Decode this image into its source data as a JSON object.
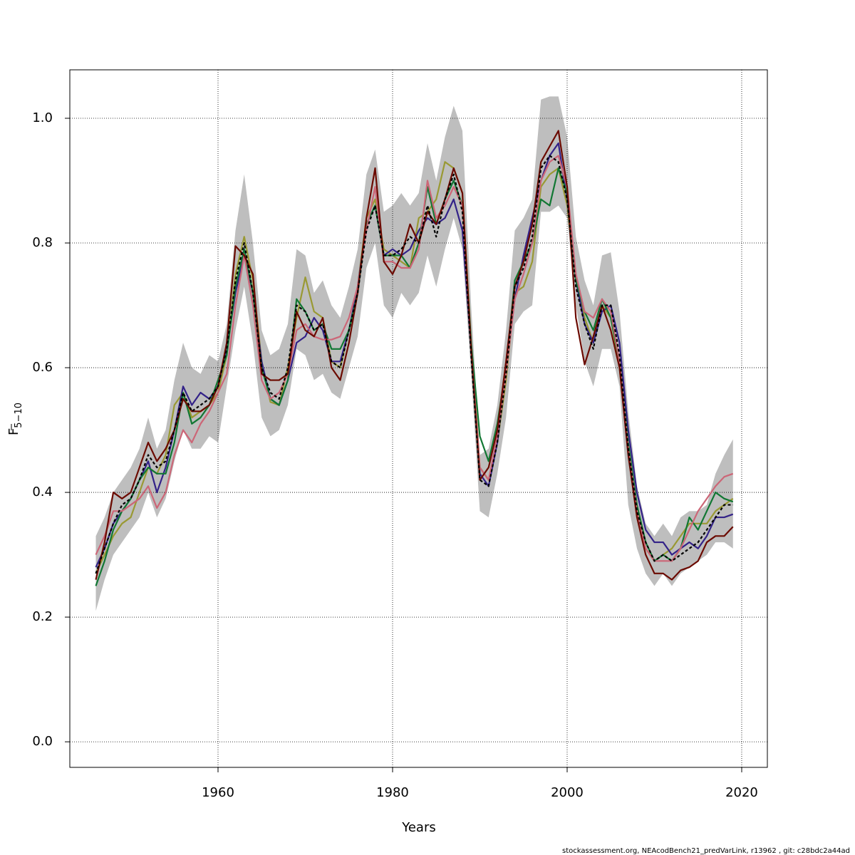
{
  "chart_data": {
    "type": "line",
    "xlabel": "Years",
    "ylabel": {
      "main": "F",
      "sub": "5−10"
    },
    "footer": "stockassessment.org, NEAcodBench21_predVarLink, r13962 , git: c28bdc2a44ad",
    "xlim": [
      1943.02,
      2022.94
    ],
    "ylim": [
      -0.041,
      1.0777
    ],
    "xticks": [
      1960,
      1980,
      2000,
      2020
    ],
    "yticks": [
      {
        "value": 0,
        "label": "0.0"
      },
      0.2,
      0.4,
      0.6,
      0.8,
      {
        "value": 1,
        "label": "1.0"
      }
    ],
    "grid": true,
    "x": [
      1946,
      1947,
      1948,
      1949,
      1950,
      1951,
      1952,
      1953,
      1954,
      1955,
      1956,
      1957,
      1958,
      1959,
      1960,
      1961,
      1962,
      1963,
      1964,
      1965,
      1966,
      1967,
      1968,
      1969,
      1970,
      1971,
      1972,
      1973,
      1974,
      1975,
      1976,
      1977,
      1978,
      1979,
      1980,
      1981,
      1982,
      1983,
      1984,
      1985,
      1986,
      1987,
      1988,
      1989,
      1990,
      1991,
      1992,
      1993,
      1994,
      1995,
      1996,
      1997,
      1998,
      1999,
      2000,
      2001,
      2002,
      2003,
      2004,
      2005,
      2006,
      2007,
      2008,
      2009,
      2010,
      2011,
      2012,
      2013,
      2014,
      2015,
      2016,
      2017,
      2018,
      2019
    ],
    "band": {
      "color": "#bebebe",
      "upper": [
        0.33,
        0.36,
        0.4,
        0.42,
        0.44,
        0.47,
        0.52,
        0.47,
        0.5,
        0.58,
        0.64,
        0.6,
        0.59,
        0.62,
        0.61,
        0.67,
        0.82,
        0.91,
        0.8,
        0.66,
        0.62,
        0.63,
        0.67,
        0.79,
        0.78,
        0.72,
        0.74,
        0.7,
        0.68,
        0.73,
        0.79,
        0.91,
        0.95,
        0.85,
        0.86,
        0.88,
        0.86,
        0.88,
        0.96,
        0.9,
        0.97,
        1.02,
        0.98,
        0.7,
        0.46,
        0.47,
        0.54,
        0.66,
        0.82,
        0.84,
        0.87,
        1.03,
        1.035,
        1.035,
        0.97,
        0.81,
        0.74,
        0.7,
        0.78,
        0.785,
        0.69,
        0.53,
        0.41,
        0.35,
        0.33,
        0.35,
        0.33,
        0.36,
        0.37,
        0.37,
        0.38,
        0.43,
        0.46,
        0.485
      ],
      "lower": [
        0.21,
        0.26,
        0.3,
        0.32,
        0.34,
        0.36,
        0.4,
        0.36,
        0.39,
        0.45,
        0.5,
        0.47,
        0.47,
        0.49,
        0.48,
        0.57,
        0.66,
        0.73,
        0.64,
        0.52,
        0.49,
        0.5,
        0.54,
        0.63,
        0.62,
        0.58,
        0.59,
        0.56,
        0.55,
        0.6,
        0.65,
        0.76,
        0.8,
        0.7,
        0.68,
        0.72,
        0.7,
        0.72,
        0.78,
        0.73,
        0.79,
        0.84,
        0.79,
        0.59,
        0.37,
        0.36,
        0.43,
        0.52,
        0.67,
        0.69,
        0.7,
        0.85,
        0.85,
        0.86,
        0.84,
        0.7,
        0.61,
        0.57,
        0.63,
        0.63,
        0.57,
        0.38,
        0.31,
        0.27,
        0.25,
        0.27,
        0.25,
        0.27,
        0.28,
        0.29,
        0.3,
        0.32,
        0.32,
        0.31
      ]
    },
    "series": [
      {
        "color": "#999933",
        "values": [
          0.27,
          0.3,
          0.33,
          0.35,
          0.36,
          0.4,
          0.44,
          0.43,
          0.46,
          0.54,
          0.56,
          0.52,
          0.53,
          0.54,
          0.56,
          0.62,
          0.75,
          0.81,
          0.74,
          0.61,
          0.545,
          0.54,
          0.6,
          0.68,
          0.745,
          0.69,
          0.68,
          0.61,
          0.6,
          0.66,
          0.73,
          0.84,
          0.87,
          0.79,
          0.78,
          0.77,
          0.76,
          0.84,
          0.85,
          0.87,
          0.93,
          0.92,
          0.88,
          0.64,
          0.44,
          0.42,
          0.48,
          0.58,
          0.72,
          0.73,
          0.77,
          0.89,
          0.91,
          0.92,
          0.86,
          0.74,
          0.68,
          0.64,
          0.7,
          0.68,
          0.6,
          0.47,
          0.37,
          0.31,
          0.29,
          0.3,
          0.31,
          0.33,
          0.35,
          0.35,
          0.35,
          0.37,
          0.38,
          0.39
        ]
      },
      {
        "color": "#332288",
        "values": [
          0.28,
          0.31,
          0.35,
          0.37,
          0.39,
          0.42,
          0.45,
          0.4,
          0.44,
          0.5,
          0.57,
          0.54,
          0.56,
          0.55,
          0.57,
          0.63,
          0.72,
          0.78,
          0.72,
          0.61,
          0.55,
          0.54,
          0.58,
          0.64,
          0.65,
          0.68,
          0.66,
          0.61,
          0.61,
          0.66,
          0.73,
          0.83,
          0.86,
          0.78,
          0.79,
          0.78,
          0.79,
          0.82,
          0.84,
          0.83,
          0.84,
          0.87,
          0.82,
          0.63,
          0.43,
          0.41,
          0.48,
          0.6,
          0.71,
          0.78,
          0.84,
          0.9,
          0.94,
          0.96,
          0.87,
          0.74,
          0.67,
          0.64,
          0.69,
          0.7,
          0.64,
          0.5,
          0.4,
          0.34,
          0.32,
          0.32,
          0.3,
          0.31,
          0.32,
          0.31,
          0.33,
          0.36,
          0.36,
          0.365
        ]
      },
      {
        "color": "#117733",
        "values": [
          0.25,
          0.29,
          0.34,
          0.37,
          0.39,
          0.42,
          0.44,
          0.43,
          0.43,
          0.48,
          0.56,
          0.51,
          0.52,
          0.54,
          0.58,
          0.62,
          0.73,
          0.79,
          0.72,
          0.6,
          0.55,
          0.54,
          0.58,
          0.71,
          0.69,
          0.66,
          0.67,
          0.63,
          0.63,
          0.66,
          0.72,
          0.83,
          0.86,
          0.78,
          0.78,
          0.78,
          0.76,
          0.8,
          0.89,
          0.83,
          0.87,
          0.9,
          0.86,
          0.64,
          0.49,
          0.45,
          0.51,
          0.6,
          0.74,
          0.77,
          0.8,
          0.87,
          0.86,
          0.92,
          0.88,
          0.74,
          0.69,
          0.66,
          0.71,
          0.68,
          0.61,
          0.48,
          0.38,
          0.32,
          0.29,
          0.3,
          0.29,
          0.31,
          0.36,
          0.34,
          0.37,
          0.4,
          0.39,
          0.385
        ]
      },
      {
        "color": "#cc6677",
        "values": [
          0.3,
          0.33,
          0.37,
          0.37,
          0.38,
          0.39,
          0.41,
          0.375,
          0.4,
          0.46,
          0.5,
          0.48,
          0.51,
          0.53,
          0.56,
          0.59,
          0.7,
          0.78,
          0.7,
          0.58,
          0.55,
          0.56,
          0.59,
          0.66,
          0.67,
          0.65,
          0.645,
          0.645,
          0.65,
          0.68,
          0.73,
          0.82,
          0.89,
          0.77,
          0.77,
          0.76,
          0.76,
          0.79,
          0.9,
          0.84,
          0.86,
          0.89,
          0.86,
          0.63,
          0.44,
          0.42,
          0.49,
          0.59,
          0.71,
          0.75,
          0.8,
          0.9,
          0.93,
          0.94,
          0.89,
          0.75,
          0.69,
          0.68,
          0.71,
          0.69,
          0.61,
          0.47,
          0.37,
          0.31,
          0.29,
          0.29,
          0.29,
          0.31,
          0.34,
          0.37,
          0.39,
          0.41,
          0.425,
          0.43
        ]
      },
      {
        "color": "#6b0a00",
        "values": [
          0.26,
          0.32,
          0.4,
          0.39,
          0.4,
          0.44,
          0.48,
          0.45,
          0.47,
          0.5,
          0.55,
          0.53,
          0.53,
          0.54,
          0.57,
          0.64,
          0.795,
          0.78,
          0.75,
          0.59,
          0.58,
          0.58,
          0.59,
          0.69,
          0.66,
          0.65,
          0.68,
          0.6,
          0.58,
          0.64,
          0.72,
          0.84,
          0.92,
          0.77,
          0.75,
          0.78,
          0.83,
          0.8,
          0.85,
          0.83,
          0.87,
          0.92,
          0.88,
          0.63,
          0.42,
          0.44,
          0.5,
          0.61,
          0.73,
          0.77,
          0.83,
          0.93,
          0.955,
          0.98,
          0.89,
          0.68,
          0.605,
          0.65,
          0.7,
          0.66,
          0.6,
          0.46,
          0.36,
          0.3,
          0.27,
          0.27,
          0.26,
          0.275,
          0.28,
          0.29,
          0.32,
          0.33,
          0.33,
          0.345
        ]
      },
      {
        "color": "#000000",
        "linestyle": "dashed",
        "values": [
          0.27,
          0.31,
          0.35,
          0.38,
          0.39,
          0.42,
          0.46,
          0.44,
          0.45,
          0.5,
          0.56,
          0.53,
          0.54,
          0.55,
          0.57,
          0.63,
          0.74,
          0.8,
          0.72,
          0.6,
          0.56,
          0.55,
          0.6,
          0.7,
          0.69,
          0.66,
          0.67,
          0.61,
          0.6,
          0.66,
          0.72,
          0.82,
          0.86,
          0.78,
          0.78,
          0.79,
          0.81,
          0.8,
          0.86,
          0.81,
          0.87,
          0.91,
          0.85,
          0.62,
          0.42,
          0.41,
          0.48,
          0.59,
          0.73,
          0.76,
          0.81,
          0.92,
          0.94,
          0.93,
          0.87,
          0.73,
          0.67,
          0.63,
          0.7,
          0.7,
          0.62,
          0.47,
          0.37,
          0.32,
          0.29,
          0.3,
          0.29,
          0.3,
          0.31,
          0.32,
          0.34,
          0.36,
          0.38,
          0.38
        ]
      }
    ]
  }
}
